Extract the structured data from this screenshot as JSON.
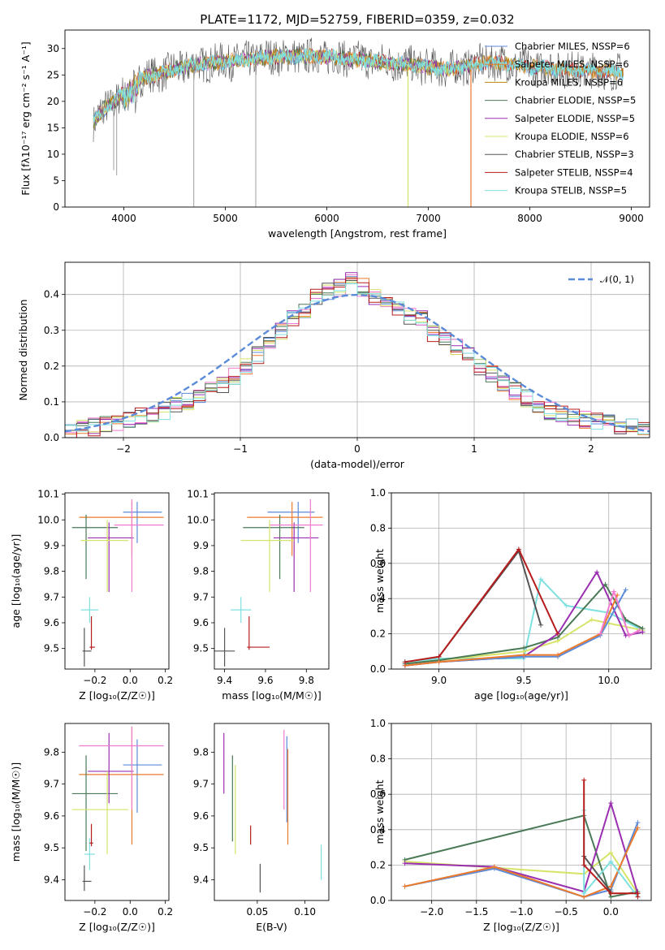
{
  "title": "PLATE=1172, MJD=52759, FIBERID=0359, z=0.032",
  "colors": {
    "Chabrier MILES": "#5b8ad8",
    "Salpeter MILES": "#ec7a2c",
    "Kroupa MILES": "#b8860b",
    "Chabrier ELODIE": "#4a7a56",
    "Salpeter ELODIE": "#9a2fb0",
    "Kroupa ELODIE": "#d6e46a",
    "Chabrier STELIB": "#555555",
    "Salpeter STELIB": "#b71c1c",
    "Kroupa STELIB": "#7fe0e0"
  },
  "chart_data": [
    {
      "type": "line",
      "xlabel": "wavelength [Angstrom, rest frame]",
      "ylabel": "Flux [fλ10⁻¹⁷ erg cm⁻² s⁻¹ A⁻¹]",
      "xlim": [
        3420,
        9180
      ],
      "ylim": [
        0,
        33.5
      ],
      "xticks": [
        "4000",
        "5000",
        "6000",
        "7000",
        "8000",
        "9000"
      ],
      "yticks": [
        "0",
        "5",
        "10",
        "15",
        "20",
        "25",
        "30"
      ],
      "grid": false,
      "legend_position": "top-right",
      "legend": [
        "Chabrier MILES, NSSP=6",
        "Salpeter MILES, NSSP=6",
        "Kroupa MILES, NSSP=6",
        "Chabrier ELODIE, NSSP=5",
        "Salpeter ELODIE, NSSP=5",
        "Kroupa ELODIE, NSSP=6",
        "Chabrier STELIB, NSSP=3",
        "Salpeter STELIB, NSSP=4",
        "Kroupa STELIB, NSSP=5"
      ],
      "continuum": [
        [
          3700,
          16
        ],
        [
          3800,
          18.5
        ],
        [
          3900,
          20
        ],
        [
          4000,
          21.5
        ],
        [
          4100,
          24
        ],
        [
          4300,
          25
        ],
        [
          4500,
          26
        ],
        [
          4700,
          27
        ],
        [
          5000,
          27.5
        ],
        [
          5500,
          28.5
        ],
        [
          6000,
          28.5
        ],
        [
          6500,
          27.5
        ],
        [
          6800,
          27
        ],
        [
          7200,
          26
        ],
        [
          7600,
          27.5
        ],
        [
          8000,
          26.5
        ],
        [
          8400,
          26
        ],
        [
          8900,
          25.5
        ]
      ],
      "dips": [
        [
          3790,
          16
        ],
        [
          3900,
          7
        ],
        [
          3930,
          6
        ],
        [
          4690,
          0
        ],
        [
          5300,
          0
        ],
        [
          6800,
          0
        ],
        [
          7420,
          0
        ]
      ]
    },
    {
      "type": "area",
      "xlabel": "(data-model)/error",
      "ylabel": "Normed distribution",
      "xlim": [
        -2.5,
        2.5
      ],
      "ylim": [
        0,
        0.49
      ],
      "xticks": [
        "−2",
        "−1",
        "0",
        "1",
        "2"
      ],
      "yticks": [
        "0.0",
        "0.1",
        "0.2",
        "0.3",
        "0.4"
      ],
      "grid": true,
      "legend_position": "top-right",
      "legend": [
        "𝒩(0, 1)"
      ],
      "bins": [
        -2.5,
        -2.4,
        -2.3,
        -2.2,
        -2.1,
        -2.0,
        -1.9,
        -1.8,
        -1.7,
        -1.6,
        -1.5,
        -1.4,
        -1.3,
        -1.2,
        -1.1,
        -1.0,
        -0.9,
        -0.8,
        -0.7,
        -0.6,
        -0.5,
        -0.4,
        -0.3,
        -0.2,
        -0.1,
        0.0,
        0.1,
        0.2,
        0.3,
        0.4,
        0.5,
        0.6,
        0.7,
        0.8,
        0.9,
        1.0,
        1.1,
        1.2,
        1.3,
        1.4,
        1.5,
        1.6,
        1.7,
        1.8,
        1.9,
        2.0,
        2.1,
        2.2,
        2.3,
        2.4,
        2.5
      ],
      "hist_base": [
        0.02,
        0.025,
        0.03,
        0.035,
        0.04,
        0.05,
        0.058,
        0.065,
        0.075,
        0.088,
        0.1,
        0.118,
        0.135,
        0.15,
        0.17,
        0.198,
        0.23,
        0.27,
        0.3,
        0.33,
        0.36,
        0.39,
        0.41,
        0.42,
        0.44,
        0.42,
        0.39,
        0.37,
        0.36,
        0.34,
        0.33,
        0.29,
        0.27,
        0.25,
        0.23,
        0.2,
        0.18,
        0.15,
        0.13,
        0.11,
        0.09,
        0.075,
        0.065,
        0.055,
        0.05,
        0.045,
        0.04,
        0.035,
        0.03,
        0.025
      ]
    },
    {
      "type": "scatter",
      "xlabel": "Z [log₁₀(Z/Z☉)]",
      "ylabel": "age  [log₁₀(age/yr)]",
      "xlim": [
        -0.37,
        0.22
      ],
      "ylim": [
        9.42,
        10.105
      ],
      "xticks": [
        "−0.2",
        "0.0",
        "0.2"
      ],
      "yticks": [
        "9.5",
        "9.6",
        "9.7",
        "9.8",
        "9.9",
        "10.0",
        "10.1"
      ],
      "points": [
        {
          "x": 0.04,
          "y": 10.03,
          "xerr": [
            0.08,
            0.14
          ],
          "yerr": [
            0.12,
            0.04
          ],
          "s": "Chabrier MILES"
        },
        {
          "x": 0.01,
          "y": 10.01,
          "xerr": [
            0.3,
            0.18
          ],
          "yerr": [
            0.15,
            0.06
          ],
          "s": "Salpeter MILES"
        },
        {
          "x": -0.25,
          "y": 9.97,
          "xerr": [
            0.08,
            0.18
          ],
          "yerr": [
            0.2,
            0.05
          ],
          "s": "Chabrier ELODIE"
        },
        {
          "x": -0.12,
          "y": 9.93,
          "xerr": [
            0.12,
            0.14
          ],
          "yerr": [
            0.21,
            0.06
          ],
          "s": "Salpeter ELODIE"
        },
        {
          "x": 0.01,
          "y": 9.98,
          "xerr": [
            0.1,
            0.18
          ],
          "yerr": [
            0.26,
            0.1
          ],
          "s": "Kroupa MILES pink"
        },
        {
          "x": -0.13,
          "y": 9.92,
          "xerr": [
            0.15,
            0.12
          ],
          "yerr": [
            0.2,
            0.08
          ],
          "s": "Kroupa ELODIE"
        },
        {
          "x": -0.23,
          "y": 9.65,
          "xerr": [
            0.05,
            0.05
          ],
          "yerr": [
            0.05,
            0.05
          ],
          "s": "Kroupa STELIB"
        },
        {
          "x": -0.22,
          "y": 9.505,
          "xerr": [
            0.01,
            0.02
          ],
          "yerr": [
            0.01,
            0.12
          ],
          "s": "Salpeter STELIB"
        },
        {
          "x": -0.26,
          "y": 9.49,
          "xerr": [
            0.01,
            0.04
          ],
          "yerr": [
            0.06,
            0.09
          ],
          "s": "Chabrier STELIB"
        }
      ]
    },
    {
      "type": "scatter",
      "xlabel": "mass [log₁₀(M/M☉)]",
      "ylabel": "",
      "xlim": [
        9.35,
        9.91
      ],
      "ylim": [
        9.42,
        10.105
      ],
      "xticks": [
        "9.4",
        "9.6",
        "9.8"
      ],
      "yticks": [
        "9.5",
        "9.6",
        "9.7",
        "9.8",
        "9.9",
        "10.0",
        "10.1"
      ],
      "points": [
        {
          "x": 9.76,
          "y": 10.03,
          "xerr": [
            0.15,
            0.08
          ],
          "yerr": [
            0.12,
            0.04
          ],
          "s": "Chabrier MILES"
        },
        {
          "x": 9.73,
          "y": 10.01,
          "xerr": [
            0.22,
            0.15
          ],
          "yerr": [
            0.15,
            0.06
          ],
          "s": "Salpeter MILES"
        },
        {
          "x": 9.67,
          "y": 9.97,
          "xerr": [
            0.18,
            0.12
          ],
          "yerr": [
            0.2,
            0.05
          ],
          "s": "Chabrier ELODIE"
        },
        {
          "x": 9.74,
          "y": 9.93,
          "xerr": [
            0.1,
            0.12
          ],
          "yerr": [
            0.21,
            0.06
          ],
          "s": "Salpeter ELODIE"
        },
        {
          "x": 9.82,
          "y": 9.98,
          "xerr": [
            0.2,
            0.06
          ],
          "yerr": [
            0.26,
            0.1
          ],
          "s": "Kroupa MILES pink"
        },
        {
          "x": 9.62,
          "y": 9.92,
          "xerr": [
            0.14,
            0.12
          ],
          "yerr": [
            0.2,
            0.08
          ],
          "s": "Kroupa ELODIE"
        },
        {
          "x": 9.48,
          "y": 9.65,
          "xerr": [
            0.05,
            0.05
          ],
          "yerr": [
            0.05,
            0.05
          ],
          "s": "Kroupa STELIB"
        },
        {
          "x": 9.52,
          "y": 9.505,
          "xerr": [
            0.01,
            0.1
          ],
          "yerr": [
            0.01,
            0.12
          ],
          "s": "Salpeter STELIB"
        },
        {
          "x": 9.4,
          "y": 9.49,
          "xerr": [
            0.05,
            0.05
          ],
          "yerr": [
            0.06,
            0.09
          ],
          "s": "Chabrier STELIB"
        }
      ]
    },
    {
      "type": "line",
      "xlabel": "age  [log₁₀(age/yr)]",
      "ylabel": "mass weight",
      "xlim": [
        8.72,
        10.25
      ],
      "ylim": [
        0,
        1.0
      ],
      "xticks": [
        "9.0",
        "9.5",
        "10.0"
      ],
      "yticks": [
        "0.0",
        "0.2",
        "0.4",
        "0.6",
        "0.8",
        "1.0"
      ],
      "grid": true,
      "series": [
        {
          "s": "Kroupa STELIB",
          "x": [
            8.8,
            9.0,
            9.5,
            9.6,
            9.75,
            10.0,
            10.2
          ],
          "y": [
            0.04,
            0.06,
            0.06,
            0.51,
            0.36,
            0.32,
            0.22
          ]
        },
        {
          "s": "Kroupa ELODIE",
          "x": [
            8.8,
            9.0,
            9.5,
            9.7,
            9.9,
            10.0,
            10.2
          ],
          "y": [
            0.03,
            0.05,
            0.1,
            0.16,
            0.28,
            0.26,
            0.22
          ]
        },
        {
          "s": "Chabrier ELODIE",
          "x": [
            8.8,
            9.0,
            9.5,
            9.7,
            9.98,
            10.1,
            10.2
          ],
          "y": [
            0.03,
            0.05,
            0.12,
            0.18,
            0.48,
            0.28,
            0.23
          ]
        },
        {
          "s": "Salpeter ELODIE",
          "x": [
            8.8,
            9.0,
            9.5,
            9.7,
            9.93,
            10.1,
            10.2
          ],
          "y": [
            0.02,
            0.04,
            0.07,
            0.2,
            0.55,
            0.19,
            0.21
          ]
        },
        {
          "s": "Chabrier MILES",
          "x": [
            8.8,
            9.0,
            9.5,
            9.7,
            9.95,
            10.1
          ],
          "y": [
            0.02,
            0.04,
            0.07,
            0.07,
            0.19,
            0.45
          ]
        },
        {
          "s": "Salpeter MILES",
          "x": [
            8.8,
            9.0,
            9.5,
            9.7,
            9.95,
            10.05
          ],
          "y": [
            0.02,
            0.04,
            0.08,
            0.08,
            0.2,
            0.42
          ]
        },
        {
          "s": "Chabrier STELIB",
          "x": [
            9.0,
            9.47,
            9.6
          ],
          "y": [
            0.07,
            0.67,
            0.25
          ]
        },
        {
          "s": "Salpeter STELIB",
          "x": [
            8.8,
            9.0,
            9.47,
            9.7
          ],
          "y": [
            0.04,
            0.07,
            0.68,
            0.2
          ]
        },
        {
          "s": "Kroupa MILES pink",
          "x": [
            9.95,
            10.03,
            10.12,
            10.18
          ],
          "y": [
            0.2,
            0.44,
            0.19,
            0.22
          ]
        }
      ]
    },
    {
      "type": "scatter",
      "xlabel": "Z [log₁₀(Z/Z☉)]",
      "ylabel": "mass [log₁₀(M/M☉)]",
      "xlim": [
        -0.37,
        0.22
      ],
      "ylim": [
        9.335,
        9.89
      ],
      "xticks": [
        "−0.2",
        "0.0",
        "0.2"
      ],
      "yticks": [
        "9.4",
        "9.5",
        "9.6",
        "9.7",
        "9.8"
      ],
      "points": [
        {
          "x": 0.04,
          "y": 9.76,
          "xerr": [
            0.08,
            0.14
          ],
          "yerr": [
            0.15,
            0.08
          ],
          "s": "Chabrier MILES"
        },
        {
          "x": 0.01,
          "y": 9.73,
          "xerr": [
            0.3,
            0.18
          ],
          "yerr": [
            0.22,
            0.15
          ],
          "s": "Salpeter MILES"
        },
        {
          "x": -0.25,
          "y": 9.67,
          "xerr": [
            0.08,
            0.18
          ],
          "yerr": [
            0.18,
            0.12
          ],
          "s": "Chabrier ELODIE"
        },
        {
          "x": -0.12,
          "y": 9.74,
          "xerr": [
            0.12,
            0.14
          ],
          "yerr": [
            0.1,
            0.12
          ],
          "s": "Salpeter ELODIE"
        },
        {
          "x": 0.01,
          "y": 9.82,
          "xerr": [
            0.3,
            0.18
          ],
          "yerr": [
            0.2,
            0.06
          ],
          "s": "Kroupa MILES pink"
        },
        {
          "x": -0.13,
          "y": 9.62,
          "xerr": [
            0.2,
            0.12
          ],
          "yerr": [
            0.14,
            0.12
          ],
          "s": "Kroupa ELODIE"
        },
        {
          "x": -0.23,
          "y": 9.48,
          "xerr": [
            0.03,
            0.03
          ],
          "yerr": [
            0.05,
            0.05
          ],
          "s": "Kroupa STELIB"
        },
        {
          "x": -0.22,
          "y": 9.515,
          "xerr": [
            0.01,
            0.01
          ],
          "yerr": [
            0.01,
            0.06
          ],
          "s": "Salpeter STELIB"
        },
        {
          "x": -0.26,
          "y": 9.395,
          "xerr": [
            0.01,
            0.04
          ],
          "yerr": [
            0.03,
            0.05
          ],
          "s": "Chabrier STELIB"
        }
      ]
    },
    {
      "type": "scatter",
      "xlabel": "E(B-V)",
      "ylabel": "",
      "xlim": [
        0.005,
        0.125
      ],
      "ylim": [
        9.335,
        9.89
      ],
      "xticks": [
        "0.05",
        "0.10"
      ],
      "yticks": [
        "9.4",
        "9.5",
        "9.6",
        "9.7",
        "9.8"
      ],
      "points": [
        {
          "x": 0.015,
          "yr": [
            9.67,
            9.86
          ],
          "s": "Salpeter ELODIE"
        },
        {
          "x": 0.024,
          "yr": [
            9.52,
            9.79
          ],
          "s": "Chabrier ELODIE"
        },
        {
          "x": 0.027,
          "yr": [
            9.48,
            9.76
          ],
          "s": "Kroupa ELODIE"
        },
        {
          "x": 0.043,
          "yr": [
            9.51,
            9.57
          ],
          "s": "Salpeter STELIB"
        },
        {
          "x": 0.053,
          "yr": [
            9.36,
            9.45
          ],
          "s": "Chabrier STELIB"
        },
        {
          "x": 0.078,
          "yr": [
            9.62,
            9.87
          ],
          "s": "Kroupa MILES pink"
        },
        {
          "x": 0.081,
          "yr": [
            9.58,
            9.85
          ],
          "s": "Chabrier MILES"
        },
        {
          "x": 0.082,
          "yr": [
            9.51,
            9.81
          ],
          "s": "Salpeter MILES"
        },
        {
          "x": 0.117,
          "yr": [
            9.4,
            9.51
          ],
          "s": "Kroupa STELIB"
        }
      ]
    },
    {
      "type": "line",
      "xlabel": "Z [log₁₀(Z/Z☉)]",
      "ylabel": "mass weight",
      "xlim": [
        -2.45,
        0.45
      ],
      "ylim": [
        0,
        1.0
      ],
      "xticks": [
        "−2.0",
        "−1.5",
        "−1.0",
        "−0.5",
        "0.0"
      ],
      "yticks": [
        "0.0",
        "0.2",
        "0.4",
        "0.6",
        "0.8",
        "1.0"
      ],
      "grid": true,
      "series": [
        {
          "s": "Kroupa ELODIE",
          "x": [
            -2.3,
            -0.3,
            0.0,
            0.3
          ],
          "y": [
            0.22,
            0.15,
            0.27,
            0.04
          ]
        },
        {
          "s": "Chabrier ELODIE",
          "x": [
            -2.3,
            -0.3,
            0.0,
            0.3
          ],
          "y": [
            0.23,
            0.48,
            0.02,
            0.05
          ]
        },
        {
          "s": "Salpeter ELODIE",
          "x": [
            -2.3,
            -1.3,
            -0.3,
            0.0,
            0.3
          ],
          "y": [
            0.21,
            0.19,
            0.05,
            0.55,
            0.04
          ]
        },
        {
          "s": "Chabrier MILES",
          "x": [
            -2.3,
            -1.3,
            -0.3,
            0.0,
            0.3
          ],
          "y": [
            0.08,
            0.18,
            0.02,
            0.06,
            0.44
          ]
        },
        {
          "s": "Salpeter MILES",
          "x": [
            -2.3,
            -1.3,
            -0.3,
            0.0,
            0.3
          ],
          "y": [
            0.08,
            0.19,
            0.02,
            0.08,
            0.41
          ]
        },
        {
          "s": "Kroupa STELIB",
          "x": [
            -0.3,
            -0.3,
            0.0,
            0.3
          ],
          "y": [
            0.51,
            0.04,
            0.22,
            0.02
          ]
        },
        {
          "s": "Chabrier STELIB",
          "x": [
            -0.3,
            0.0
          ],
          "y": [
            0.25,
            0.05
          ]
        },
        {
          "s": "Salpeter STELIB",
          "x": [
            -0.3,
            -0.3,
            0.0,
            0.3,
            0.3
          ],
          "y": [
            0.68,
            0.2,
            0.04,
            0.04,
            0.02
          ]
        }
      ]
    }
  ]
}
